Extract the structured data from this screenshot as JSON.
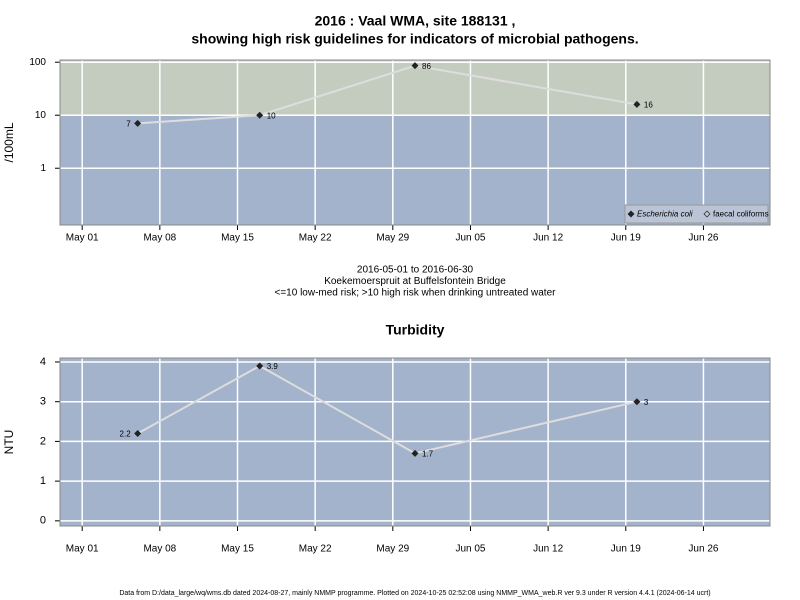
{
  "chart_data": [
    {
      "type": "line",
      "title": [
        "2016 : Vaal WMA, site 188131 ,",
        "showing high risk guidelines for indicators of microbial pathogens."
      ],
      "ylabel": "/100mL",
      "x": [
        "2016-05-06",
        "2016-05-17",
        "2016-05-31",
        "2016-06-20"
      ],
      "series": [
        {
          "name": "Escherichia coli",
          "color": "#222222",
          "values": [
            7,
            10,
            86,
            16
          ]
        },
        {
          "name": "faecal coliforms",
          "color": "#222222",
          "values": [
            null,
            null,
            null,
            null
          ]
        }
      ],
      "log_scale": true,
      "xlim": [
        "2016-04-29",
        "2016-07-02"
      ],
      "xticks": [
        {
          "value": "2016-05-01",
          "label": "May 01"
        },
        {
          "value": "2016-05-08",
          "label": "May 08"
        },
        {
          "value": "2016-05-15",
          "label": "May 15"
        },
        {
          "value": "2016-05-22",
          "label": "May 22"
        },
        {
          "value": "2016-05-29",
          "label": "May 29"
        },
        {
          "value": "2016-06-05",
          "label": "Jun 05"
        },
        {
          "value": "2016-06-12",
          "label": "Jun 12"
        },
        {
          "value": "2016-06-19",
          "label": "Jun 19"
        },
        {
          "value": "2016-06-26",
          "label": "Jun 26"
        }
      ],
      "ylim": [
        0.085,
        110
      ],
      "yticks": [
        1,
        10,
        100
      ],
      "grid": true,
      "background": "#a3b3cc",
      "guideline": {
        "value": 10,
        "color": "#c4ccbf"
      },
      "line_color": "#dddddd",
      "legend": "lower right",
      "annotations": [
        "2016-05-01 to 2016-06-30",
        "Koekemoerspruit at Buffelsfontein Bridge",
        "<=10 low-med risk; >10 high risk when drinking untreated water"
      ]
    },
    {
      "type": "line",
      "title": [
        "Turbidity"
      ],
      "ylabel": "NTU",
      "x": [
        "2016-05-06",
        "2016-05-17",
        "2016-05-31",
        "2016-06-20"
      ],
      "series": [
        {
          "name": "Turbidity",
          "color": "#222222",
          "values": [
            2.2,
            3.9,
            1.7,
            3
          ]
        }
      ],
      "log_scale": false,
      "xlim": [
        "2016-04-29",
        "2016-07-02"
      ],
      "xticks": [
        {
          "value": "2016-05-01",
          "label": "May 01"
        },
        {
          "value": "2016-05-08",
          "label": "May 08"
        },
        {
          "value": "2016-05-15",
          "label": "May 15"
        },
        {
          "value": "2016-05-22",
          "label": "May 22"
        },
        {
          "value": "2016-05-29",
          "label": "May 29"
        },
        {
          "value": "2016-06-05",
          "label": "Jun 05"
        },
        {
          "value": "2016-06-12",
          "label": "Jun 12"
        },
        {
          "value": "2016-06-19",
          "label": "Jun 19"
        },
        {
          "value": "2016-06-26",
          "label": "Jun 26"
        }
      ],
      "ylim": [
        -0.13,
        4.1
      ],
      "yticks": [
        0,
        1,
        2,
        3,
        4
      ],
      "grid": true,
      "background": "#a3b3cc",
      "line_color": "#dddddd",
      "caption": "Data from D:/data_large/wq/wms.db dated 2024-08-27, mainly NMMP programme. Plotted on 2024-10-25 02:52:08 using NMMP_WMA_web.R ver 9.3 under R version 4.4.1 (2024-06-14 ucrt)"
    }
  ]
}
